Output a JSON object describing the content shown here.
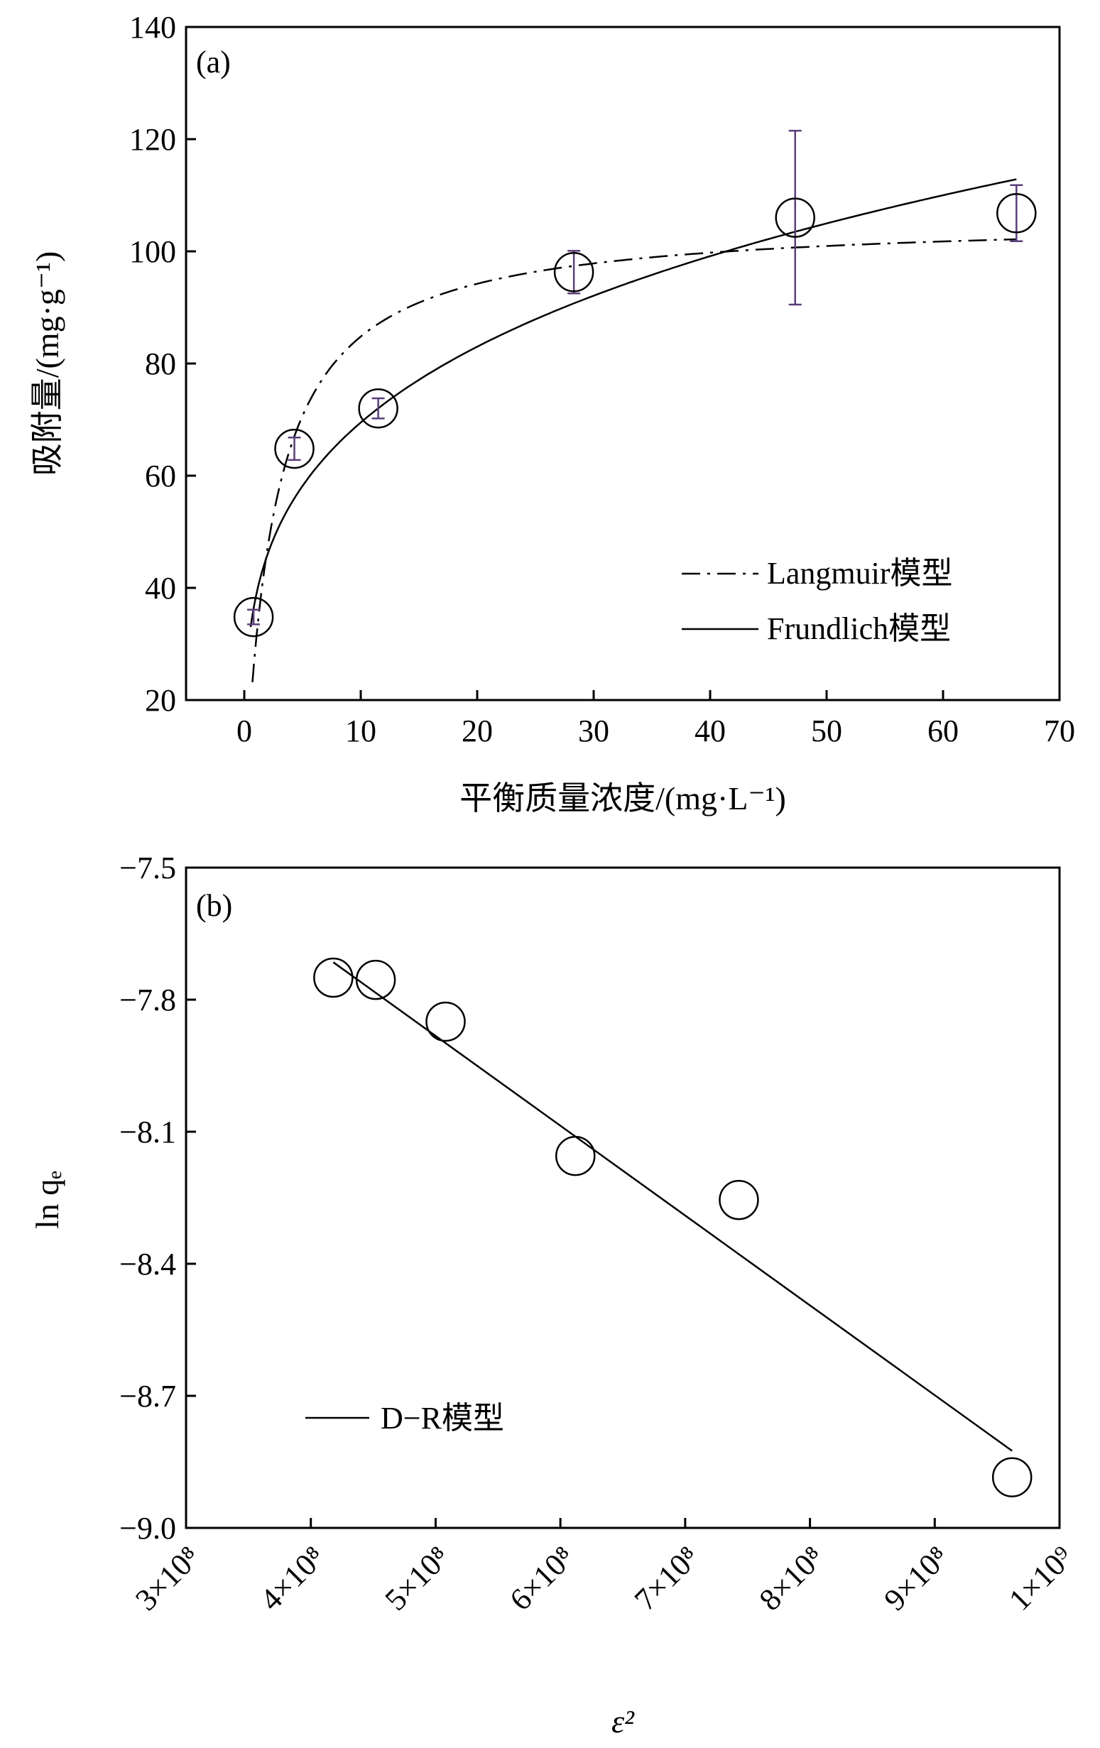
{
  "chart_data": [
    {
      "type": "scatter",
      "panel_label": "(a)",
      "xlabel": "平衡质量浓度/(mg·L⁻¹)",
      "ylabel": "吸附量/(mg·g⁻¹)",
      "xlim": [
        -5,
        70
      ],
      "ylim": [
        20,
        140
      ],
      "xticks": [
        0,
        10,
        20,
        30,
        40,
        50,
        60,
        70
      ],
      "yticks": [
        20,
        40,
        60,
        80,
        100,
        120,
        140
      ],
      "grid": false,
      "legend_position": "lower-right",
      "points": [
        {
          "x": 0.8,
          "y": 34.8,
          "err": 1.3
        },
        {
          "x": 4.3,
          "y": 64.8,
          "err": 2.0
        },
        {
          "x": 11.5,
          "y": 72.0,
          "err": 1.8
        },
        {
          "x": 28.3,
          "y": 96.3,
          "err": 3.8
        },
        {
          "x": 47.3,
          "y": 106.0,
          "err": 15.5
        },
        {
          "x": 66.3,
          "y": 106.8,
          "err": 5.0
        }
      ],
      "series": [
        {
          "name": "Langmuir模型",
          "style": "dash-dot",
          "qmax": 106,
          "KL": 0.4
        },
        {
          "name": "Frundlich模型",
          "style": "solid",
          "KF": 38.5,
          "n": 3.9
        }
      ],
      "errorbar_color": "#5a3d7a"
    },
    {
      "type": "scatter",
      "panel_label": "(b)",
      "xlabel": "ε²",
      "ylabel": "ln qₑ",
      "xlim": [
        300000000,
        1000000000
      ],
      "ylim": [
        -9.0,
        -7.5
      ],
      "xticks": [
        300000000,
        400000000,
        500000000,
        600000000,
        700000000,
        800000000,
        900000000,
        1000000000
      ],
      "xticklabels": [
        "3×10⁸",
        "4×10⁸",
        "5×10⁸",
        "6×10⁸",
        "7×10⁸",
        "8×10⁸",
        "9×10⁸",
        "1×10⁹"
      ],
      "yticks": [
        -9.0,
        -8.7,
        -8.4,
        -8.1,
        -7.8,
        -7.5
      ],
      "yticklabels": [
        "−9.0",
        "−8.7",
        "−8.4",
        "−8.1",
        "−7.8",
        "−7.5"
      ],
      "grid": false,
      "legend_position": "lower-left",
      "points": [
        {
          "x": 418000000,
          "y": -7.75
        },
        {
          "x": 452000000,
          "y": -7.755
        },
        {
          "x": 508000000,
          "y": -7.85
        },
        {
          "x": 612000000,
          "y": -8.155
        },
        {
          "x": 743000000,
          "y": -8.255
        },
        {
          "x": 962000000,
          "y": -8.885
        }
      ],
      "series": [
        {
          "name": "D−R模型",
          "style": "solid",
          "x_range": [
            418000000,
            962000000
          ],
          "y_range": [
            -7.715,
            -8.825
          ]
        }
      ]
    }
  ]
}
